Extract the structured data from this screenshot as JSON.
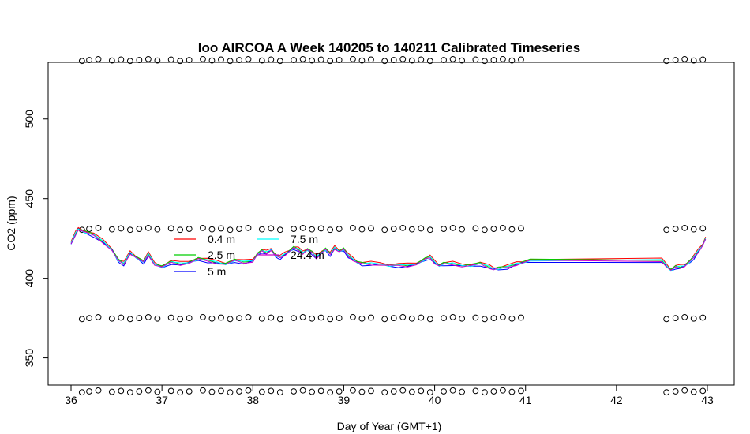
{
  "chart_data": {
    "type": "line",
    "title": "loo AIRCOA A  Week 140205 to 140211  Calibrated Timeseries",
    "xlabel": "Day of Year (GMT+1)",
    "ylabel": "CO2 (ppm)",
    "xlim": [
      36,
      43
    ],
    "ylim": [
      328,
      540
    ],
    "xticks": [
      "36",
      "37",
      "38",
      "39",
      "40",
      "41",
      "42",
      "43"
    ],
    "yticks": [
      "350",
      "400",
      "450",
      "500"
    ],
    "grid": false,
    "legend_position": "inside-left",
    "legend": [
      "0.4 m",
      "2.5 m",
      "5 m",
      "7.5 m",
      "24.4 m"
    ],
    "series": [
      {
        "name": "0.4 m",
        "color": "#FF0000",
        "offset": 1.0
      },
      {
        "name": "2.5 m",
        "color": "#00CD00",
        "offset": 0.4
      },
      {
        "name": "5 m",
        "color": "#0000FF",
        "offset": -0.6
      },
      {
        "name": "7.5 m",
        "color": "#00FFFF",
        "offset": 0.1
      },
      {
        "name": "24.4 m",
        "color": "#CC00CC",
        "offset": -0.3
      }
    ],
    "profile": {
      "x": [
        36.0,
        36.05,
        36.08,
        36.15,
        36.25,
        36.35,
        36.45,
        36.52,
        36.58,
        36.65,
        36.72,
        36.8,
        36.85,
        36.92,
        37.0,
        37.1,
        37.2,
        37.3,
        37.4,
        37.5,
        37.6,
        37.7,
        37.8,
        37.9,
        38.0,
        38.05,
        38.1,
        38.15,
        38.2,
        38.25,
        38.3,
        38.35,
        38.4,
        38.45,
        38.5,
        38.55,
        38.6,
        38.65,
        38.7,
        38.75,
        38.8,
        38.85,
        38.9,
        38.95,
        39.0,
        39.05,
        39.1,
        39.15,
        39.2,
        39.3,
        39.4,
        39.5,
        39.6,
        39.7,
        39.8,
        39.9,
        39.95,
        40.0,
        40.05,
        40.1,
        40.2,
        40.3,
        40.4,
        40.5,
        40.6,
        40.65,
        40.7,
        40.8,
        40.9,
        40.97,
        41.05,
        42.5,
        42.55,
        42.6,
        42.65,
        42.7,
        42.75,
        42.8,
        42.85,
        42.9,
        42.95,
        42.98
      ],
      "y": [
        422,
        428,
        431,
        429,
        427,
        423,
        418,
        411,
        409,
        416,
        413,
        410,
        415,
        409,
        407,
        410,
        409,
        410,
        412,
        411,
        410,
        409,
        411,
        410,
        411,
        415,
        417,
        416,
        418,
        414,
        413,
        415,
        417,
        419,
        418,
        416,
        418,
        416,
        413,
        416,
        418,
        415,
        419,
        417,
        418,
        414,
        412,
        410,
        409,
        409,
        409,
        408,
        408,
        408,
        409,
        412,
        413,
        410,
        408,
        409,
        409,
        408,
        408,
        409,
        407,
        406,
        406,
        407,
        409,
        410,
        411,
        411,
        408,
        405,
        407,
        407,
        408,
        410,
        413,
        417,
        421,
        425
      ]
    },
    "calibration_markers": {
      "levels": [
        537,
        431,
        375,
        329
      ],
      "x": [
        36.12,
        36.2,
        36.3,
        36.45,
        36.55,
        36.65,
        36.75,
        36.85,
        36.95,
        37.1,
        37.2,
        37.3,
        37.45,
        37.55,
        37.65,
        37.75,
        37.85,
        37.95,
        38.1,
        38.2,
        38.3,
        38.45,
        38.55,
        38.65,
        38.75,
        38.85,
        38.95,
        39.1,
        39.2,
        39.3,
        39.45,
        39.55,
        39.65,
        39.75,
        39.85,
        39.95,
        40.1,
        40.2,
        40.3,
        40.45,
        40.55,
        40.65,
        40.75,
        40.85,
        40.95
      ],
      "x_end": [
        42.55,
        42.65,
        42.75,
        42.85,
        42.95
      ]
    }
  }
}
